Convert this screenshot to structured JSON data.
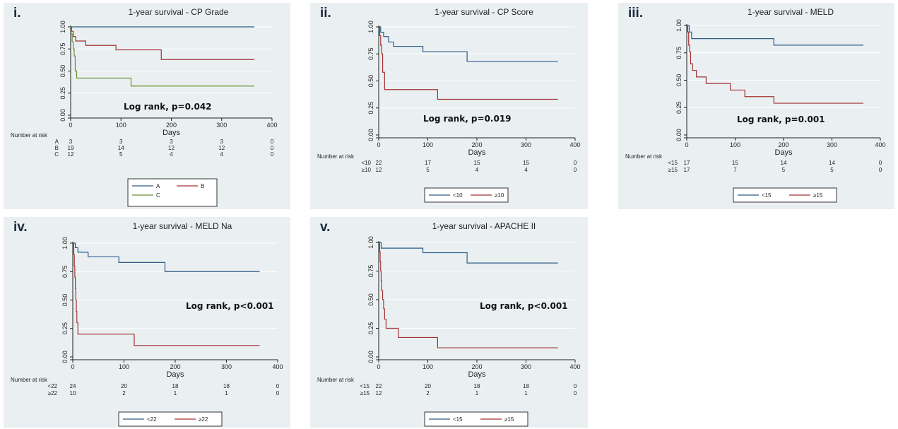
{
  "colors": {
    "line1": "#2f5b86",
    "line2": "#a33232",
    "line3": "#6b9133",
    "panel_bg": "#eaf0f2",
    "axis": "#1f1f1f"
  },
  "panels": [
    {
      "label": "i.",
      "annotation": "Log rank, p=0.042"
    },
    {
      "label": "ii.",
      "annotation": "Log rank, p=0.019"
    },
    {
      "label": "iii.",
      "annotation": "Log rank, p=0.001"
    },
    {
      "label": "iv.",
      "annotation": "Log rank, p<0.001"
    },
    {
      "label": "v.",
      "annotation": "Log rank, p<0.001"
    }
  ],
  "chart_data": [
    {
      "type": "line",
      "title": "1-year survival - CP Grade",
      "xlabel": "Days",
      "xlim": [
        0,
        400
      ],
      "ylim": [
        0,
        1
      ],
      "x_ticks": [
        0,
        100,
        200,
        300,
        400
      ],
      "y_ticks": [
        "0.00",
        "0.25",
        "0.50",
        "0.75",
        "1.00"
      ],
      "annotation": "Log rank, p=0.042",
      "series": [
        {
          "name": "A",
          "points": [
            [
              0,
              1.0
            ],
            [
              365,
              1.0
            ]
          ]
        },
        {
          "name": "B",
          "points": [
            [
              0,
              1.0
            ],
            [
              2,
              0.95
            ],
            [
              5,
              0.89
            ],
            [
              10,
              0.84
            ],
            [
              30,
              0.79
            ],
            [
              90,
              0.74
            ],
            [
              180,
              0.63
            ],
            [
              365,
              0.63
            ]
          ]
        },
        {
          "name": "C",
          "points": [
            [
              0,
              1.0
            ],
            [
              1,
              0.92
            ],
            [
              3,
              0.83
            ],
            [
              5,
              0.75
            ],
            [
              7,
              0.67
            ],
            [
              9,
              0.5
            ],
            [
              12,
              0.42
            ],
            [
              120,
              0.33
            ],
            [
              365,
              0.33
            ]
          ]
        }
      ],
      "risk_table": {
        "title": "Number at risk",
        "x": [
          0,
          100,
          200,
          300,
          400
        ],
        "rows": [
          {
            "label": "A",
            "values": [
              "3",
              "3",
              "3",
              "3",
              "0"
            ]
          },
          {
            "label": "B",
            "values": [
              "19",
              "14",
              "12",
              "12",
              "0"
            ]
          },
          {
            "label": "C",
            "values": [
              "12",
              "5",
              "4",
              "4",
              "0"
            ]
          }
        ]
      }
    },
    {
      "type": "line",
      "title": "1-year survival - CP Score",
      "xlabel": "Days",
      "xlim": [
        0,
        400
      ],
      "ylim": [
        0,
        1
      ],
      "x_ticks": [
        0,
        100,
        200,
        300,
        400
      ],
      "y_ticks": [
        "0.00",
        "0.25",
        "0.50",
        "0.75",
        "1.00"
      ],
      "annotation": "Log rank, p=0.019",
      "series": [
        {
          "name": "<10",
          "points": [
            [
              0,
              1.0
            ],
            [
              4,
              0.95
            ],
            [
              10,
              0.91
            ],
            [
              20,
              0.86
            ],
            [
              30,
              0.82
            ],
            [
              90,
              0.77
            ],
            [
              180,
              0.68
            ],
            [
              365,
              0.68
            ]
          ]
        },
        {
          "name": "≥10",
          "points": [
            [
              0,
              1.0
            ],
            [
              2,
              0.92
            ],
            [
              4,
              0.83
            ],
            [
              6,
              0.75
            ],
            [
              8,
              0.58
            ],
            [
              12,
              0.42
            ],
            [
              120,
              0.33
            ],
            [
              365,
              0.33
            ]
          ]
        }
      ],
      "risk_table": {
        "title": "Number at risk",
        "x": [
          0,
          100,
          200,
          300,
          400
        ],
        "rows": [
          {
            "label": "<10",
            "values": [
              "22",
              "17",
              "15",
              "15",
              "0"
            ]
          },
          {
            "label": "≥10",
            "values": [
              "12",
              "5",
              "4",
              "4",
              "0"
            ]
          }
        ]
      }
    },
    {
      "type": "line",
      "title": "1-year survival - MELD",
      "xlabel": "Days",
      "xlim": [
        0,
        400
      ],
      "ylim": [
        0,
        1
      ],
      "x_ticks": [
        0,
        100,
        200,
        300,
        400
      ],
      "y_ticks": [
        "0.00",
        "0.25",
        "0.50",
        "0.75",
        "1.00"
      ],
      "annotation": "Log rank, p=0.001",
      "series": [
        {
          "name": "<15",
          "points": [
            [
              0,
              1.0
            ],
            [
              5,
              0.94
            ],
            [
              10,
              0.88
            ],
            [
              180,
              0.82
            ],
            [
              365,
              0.82
            ]
          ]
        },
        {
          "name": "≥15",
          "points": [
            [
              0,
              1.0
            ],
            [
              2,
              0.94
            ],
            [
              4,
              0.82
            ],
            [
              6,
              0.76
            ],
            [
              8,
              0.65
            ],
            [
              12,
              0.59
            ],
            [
              20,
              0.53
            ],
            [
              40,
              0.47
            ],
            [
              90,
              0.41
            ],
            [
              120,
              0.35
            ],
            [
              180,
              0.29
            ],
            [
              365,
              0.29
            ]
          ]
        }
      ],
      "risk_table": {
        "title": "Number at risk",
        "x": [
          0,
          100,
          200,
          300,
          400
        ],
        "rows": [
          {
            "label": "<15",
            "values": [
              "17",
              "15",
              "14",
              "14",
              "0"
            ]
          },
          {
            "label": "≥15",
            "values": [
              "17",
              "7",
              "5",
              "5",
              "0"
            ]
          }
        ]
      }
    },
    {
      "type": "line",
      "title": "1-year survival - MELD Na",
      "xlabel": "Days",
      "xlim": [
        0,
        400
      ],
      "ylim": [
        0,
        1
      ],
      "x_ticks": [
        0,
        100,
        200,
        300,
        400
      ],
      "y_ticks": [
        "0.00",
        "0.25",
        "0.50",
        "0.75",
        "1.00"
      ],
      "annotation": "Log rank, p<0.001",
      "series": [
        {
          "name": "<22",
          "points": [
            [
              0,
              1.0
            ],
            [
              5,
              0.96
            ],
            [
              10,
              0.92
            ],
            [
              30,
              0.88
            ],
            [
              90,
              0.83
            ],
            [
              180,
              0.75
            ],
            [
              365,
              0.75
            ]
          ]
        },
        {
          "name": "≥22",
          "points": [
            [
              0,
              1.0
            ],
            [
              2,
              0.9
            ],
            [
              3,
              0.8
            ],
            [
              4,
              0.7
            ],
            [
              5,
              0.6
            ],
            [
              6,
              0.5
            ],
            [
              7,
              0.4
            ],
            [
              8,
              0.3
            ],
            [
              10,
              0.2
            ],
            [
              120,
              0.1
            ],
            [
              365,
              0.1
            ]
          ]
        }
      ],
      "risk_table": {
        "title": "Number at risk",
        "x": [
          0,
          100,
          200,
          300,
          400
        ],
        "rows": [
          {
            "label": "<22",
            "values": [
              "24",
              "20",
              "18",
              "18",
              "0"
            ]
          },
          {
            "label": "≥22",
            "values": [
              "10",
              "2",
              "1",
              "1",
              "0"
            ]
          }
        ]
      }
    },
    {
      "type": "line",
      "title": "1-year survival - APACHE II",
      "xlabel": "Days",
      "xlim": [
        0,
        400
      ],
      "ylim": [
        0,
        1
      ],
      "x_ticks": [
        0,
        100,
        200,
        300,
        400
      ],
      "y_ticks": [
        "0.00",
        "0.25",
        "0.50",
        "0.75",
        "1.00"
      ],
      "annotation": "Log rank, p<0.001",
      "series": [
        {
          "name": "<15",
          "points": [
            [
              0,
              1.0
            ],
            [
              5,
              0.95
            ],
            [
              90,
              0.91
            ],
            [
              180,
              0.82
            ],
            [
              365,
              0.82
            ]
          ]
        },
        {
          "name": "≥15",
          "points": [
            [
              0,
              1.0
            ],
            [
              2,
              0.92
            ],
            [
              3,
              0.83
            ],
            [
              4,
              0.75
            ],
            [
              5,
              0.67
            ],
            [
              6,
              0.58
            ],
            [
              8,
              0.5
            ],
            [
              10,
              0.42
            ],
            [
              12,
              0.33
            ],
            [
              15,
              0.25
            ],
            [
              40,
              0.17
            ],
            [
              120,
              0.08
            ],
            [
              365,
              0.08
            ]
          ]
        }
      ],
      "risk_table": {
        "title": "Number at risk",
        "x": [
          0,
          100,
          200,
          300,
          400
        ],
        "rows": [
          {
            "label": "<15",
            "values": [
              "22",
              "20",
              "18",
              "18",
              "0"
            ]
          },
          {
            "label": "≥15",
            "values": [
              "12",
              "2",
              "1",
              "1",
              "0"
            ]
          }
        ]
      }
    }
  ]
}
